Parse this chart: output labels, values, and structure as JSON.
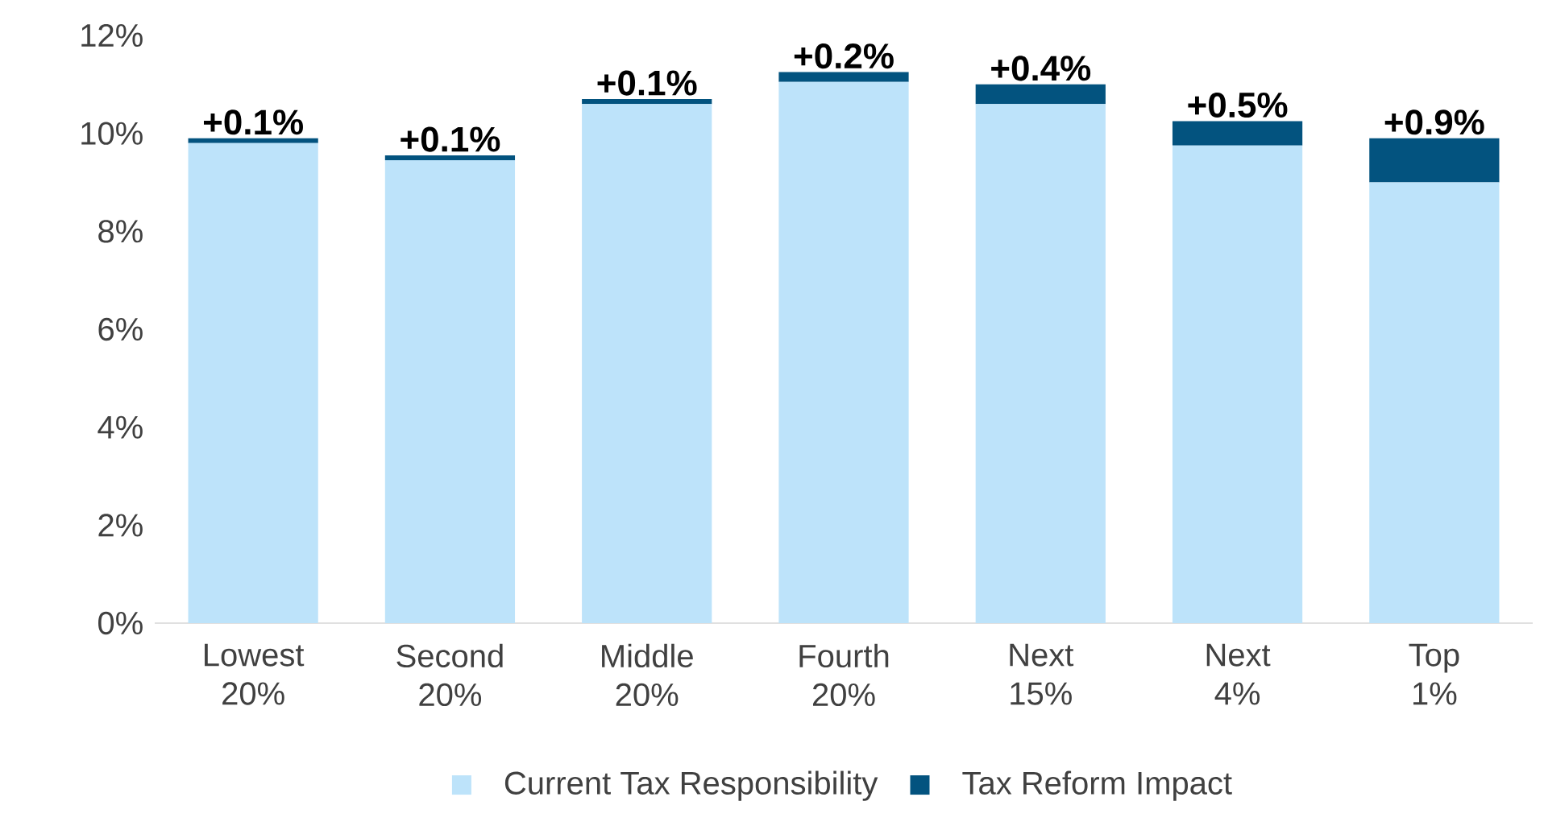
{
  "chart_data": {
    "type": "bar",
    "stacked": true,
    "categories": [
      "Lowest 20%",
      "Second 20%",
      "Middle 20%",
      "Fourth 20%",
      "Next 15%",
      "Next 4%",
      "Top 1%"
    ],
    "series": [
      {
        "name": "Current Tax Responsibility",
        "color": "#bde3fa",
        "values": [
          9.8,
          9.45,
          10.6,
          11.05,
          10.6,
          9.75,
          9.0
        ]
      },
      {
        "name": "Tax Reform Impact",
        "color": "#03537f",
        "values": [
          0.1,
          0.1,
          0.1,
          0.2,
          0.4,
          0.5,
          0.9
        ],
        "value_labels": [
          "+0.1%",
          "+0.1%",
          "+0.1%",
          "+0.2%",
          "+0.4%",
          "+0.5%",
          "+0.9%"
        ]
      }
    ],
    "ylim": [
      0,
      12
    ],
    "yticks": [
      {
        "value": 0,
        "label": "0%"
      },
      {
        "value": 2,
        "label": "2%"
      },
      {
        "value": 4,
        "label": "4%"
      },
      {
        "value": 6,
        "label": "6%"
      },
      {
        "value": 8,
        "label": "8%"
      },
      {
        "value": 10,
        "label": "10%"
      },
      {
        "value": 12,
        "label": "12%"
      }
    ],
    "legend": "bottom",
    "grid": false
  }
}
